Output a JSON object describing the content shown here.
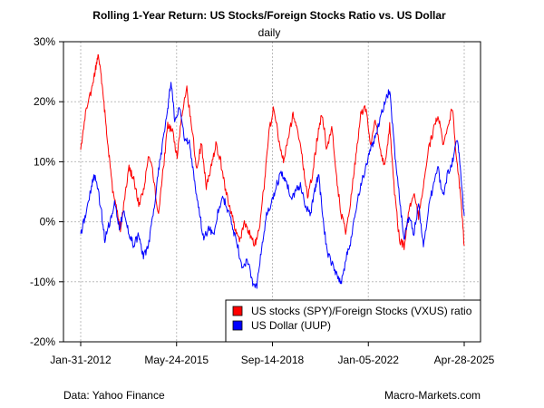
{
  "chart_data": {
    "type": "line",
    "title": "Rolling 1-Year Return: US Stocks/Foreign Stocks Ratio vs. US Dollar",
    "subtitle": "daily",
    "xlabel": "",
    "ylabel": "",
    "y_unit": "%",
    "ylim": [
      -20,
      30
    ],
    "y_ticks": [
      -20,
      -10,
      0,
      10,
      20,
      30
    ],
    "y_tick_labels": [
      "-20%",
      "-10%",
      "0%",
      "10%",
      "20%",
      "30%"
    ],
    "xlim": [
      "2012-01-31",
      "2025-04-28"
    ],
    "x_ticks": [
      "2012-01-31",
      "2015-05-24",
      "2018-09-14",
      "2022-01-05",
      "2025-04-28"
    ],
    "x_tick_labels": [
      "Jan-31-2012",
      "May-24-2015",
      "Sep-14-2018",
      "Jan-05-2022",
      "Apr-28-2025"
    ],
    "grid": true,
    "legend": "bottom-right",
    "series": [
      {
        "name": "US stocks (SPY)/Foreign Stocks (VXUS) ratio",
        "color": "#ff0000",
        "points": [
          [
            "2012-01-31",
            12
          ],
          [
            "2012-04-01",
            18
          ],
          [
            "2012-06-15",
            22
          ],
          [
            "2012-08-01",
            25
          ],
          [
            "2012-09-10",
            28
          ],
          [
            "2012-10-15",
            24
          ],
          [
            "2012-12-01",
            18
          ],
          [
            "2013-01-15",
            12
          ],
          [
            "2013-03-01",
            6
          ],
          [
            "2013-05-01",
            2
          ],
          [
            "2013-06-15",
            -1
          ],
          [
            "2013-08-01",
            3
          ],
          [
            "2013-10-01",
            9
          ],
          [
            "2013-12-01",
            7
          ],
          [
            "2014-02-01",
            3
          ],
          [
            "2014-04-01",
            5
          ],
          [
            "2014-06-01",
            11
          ],
          [
            "2014-08-01",
            8
          ],
          [
            "2014-10-01",
            1
          ],
          [
            "2014-12-01",
            8
          ],
          [
            "2015-02-01",
            16
          ],
          [
            "2015-04-01",
            15
          ],
          [
            "2015-06-01",
            11
          ],
          [
            "2015-08-01",
            18
          ],
          [
            "2015-10-01",
            22
          ],
          [
            "2015-12-01",
            16
          ],
          [
            "2016-02-01",
            9
          ],
          [
            "2016-04-01",
            13
          ],
          [
            "2016-06-01",
            6
          ],
          [
            "2016-08-01",
            9
          ],
          [
            "2016-10-01",
            13
          ],
          [
            "2016-12-01",
            10
          ],
          [
            "2017-02-01",
            5
          ],
          [
            "2017-04-01",
            2
          ],
          [
            "2017-06-01",
            -1
          ],
          [
            "2017-08-01",
            -3
          ],
          [
            "2017-10-01",
            0
          ],
          [
            "2017-12-01",
            -2
          ],
          [
            "2018-02-01",
            -4
          ],
          [
            "2018-04-01",
            -1
          ],
          [
            "2018-06-01",
            6
          ],
          [
            "2018-08-01",
            15
          ],
          [
            "2018-10-01",
            19
          ],
          [
            "2018-12-01",
            14
          ],
          [
            "2019-02-01",
            10
          ],
          [
            "2019-04-01",
            14
          ],
          [
            "2019-06-01",
            18
          ],
          [
            "2019-08-01",
            15
          ],
          [
            "2019-10-01",
            10
          ],
          [
            "2019-12-01",
            4
          ],
          [
            "2020-02-01",
            8
          ],
          [
            "2020-04-01",
            14
          ],
          [
            "2020-06-01",
            18
          ],
          [
            "2020-08-01",
            12
          ],
          [
            "2020-10-01",
            16
          ],
          [
            "2020-12-01",
            7
          ],
          [
            "2021-02-01",
            1
          ],
          [
            "2021-04-01",
            -2
          ],
          [
            "2021-06-01",
            4
          ],
          [
            "2021-08-01",
            11
          ],
          [
            "2021-10-01",
            18
          ],
          [
            "2021-12-01",
            19
          ],
          [
            "2022-02-01",
            13
          ],
          [
            "2022-04-01",
            17
          ],
          [
            "2022-06-01",
            12
          ],
          [
            "2022-08-01",
            9
          ],
          [
            "2022-10-01",
            16
          ],
          [
            "2022-12-01",
            5
          ],
          [
            "2023-02-01",
            -3
          ],
          [
            "2023-04-01",
            -4
          ],
          [
            "2023-06-01",
            2
          ],
          [
            "2023-08-01",
            5
          ],
          [
            "2023-10-01",
            1
          ],
          [
            "2023-12-01",
            6
          ],
          [
            "2024-02-01",
            12
          ],
          [
            "2024-04-01",
            15
          ],
          [
            "2024-06-01",
            18
          ],
          [
            "2024-08-01",
            13
          ],
          [
            "2024-10-01",
            16
          ],
          [
            "2024-12-01",
            19
          ],
          [
            "2025-02-01",
            9
          ],
          [
            "2025-03-15",
            4
          ],
          [
            "2025-04-28",
            -4
          ]
        ]
      },
      {
        "name": "US Dollar (UUP)",
        "color": "#0000ff",
        "points": [
          [
            "2012-01-31",
            -2
          ],
          [
            "2012-04-01",
            1
          ],
          [
            "2012-06-15",
            6
          ],
          [
            "2012-08-01",
            8
          ],
          [
            "2012-10-15",
            2
          ],
          [
            "2012-12-01",
            -3
          ],
          [
            "2013-02-01",
            0
          ],
          [
            "2013-04-01",
            3
          ],
          [
            "2013-06-01",
            -1
          ],
          [
            "2013-08-01",
            2
          ],
          [
            "2013-10-01",
            -2
          ],
          [
            "2013-12-01",
            -4
          ],
          [
            "2014-02-01",
            -2
          ],
          [
            "2014-04-01",
            -6
          ],
          [
            "2014-06-01",
            -4
          ],
          [
            "2014-08-01",
            1
          ],
          [
            "2014-10-01",
            8
          ],
          [
            "2014-12-01",
            13
          ],
          [
            "2015-02-01",
            19
          ],
          [
            "2015-03-15",
            23
          ],
          [
            "2015-05-01",
            17
          ],
          [
            "2015-07-01",
            19
          ],
          [
            "2015-09-01",
            14
          ],
          [
            "2015-11-01",
            13
          ],
          [
            "2016-01-01",
            7
          ],
          [
            "2016-03-01",
            2
          ],
          [
            "2016-05-01",
            -3
          ],
          [
            "2016-07-01",
            -1
          ],
          [
            "2016-09-01",
            -2
          ],
          [
            "2016-11-01",
            2
          ],
          [
            "2017-01-01",
            4
          ],
          [
            "2017-03-01",
            2
          ],
          [
            "2017-05-01",
            -1
          ],
          [
            "2017-07-01",
            -4
          ],
          [
            "2017-09-01",
            -8
          ],
          [
            "2017-11-01",
            -6
          ],
          [
            "2018-01-01",
            -10
          ],
          [
            "2018-03-01",
            -11
          ],
          [
            "2018-05-01",
            -4
          ],
          [
            "2018-07-01",
            1
          ],
          [
            "2018-09-01",
            3
          ],
          [
            "2018-11-01",
            6
          ],
          [
            "2019-01-01",
            8
          ],
          [
            "2019-03-01",
            7
          ],
          [
            "2019-05-01",
            4
          ],
          [
            "2019-07-01",
            5
          ],
          [
            "2019-09-01",
            6
          ],
          [
            "2019-11-01",
            3
          ],
          [
            "2020-01-01",
            1
          ],
          [
            "2020-03-01",
            5
          ],
          [
            "2020-04-15",
            8
          ],
          [
            "2020-06-01",
            2
          ],
          [
            "2020-08-01",
            -5
          ],
          [
            "2020-10-01",
            -7
          ],
          [
            "2020-12-01",
            -9
          ],
          [
            "2021-02-01",
            -10
          ],
          [
            "2021-04-01",
            -6
          ],
          [
            "2021-06-01",
            -3
          ],
          [
            "2021-08-01",
            2
          ],
          [
            "2021-10-01",
            6
          ],
          [
            "2021-12-01",
            9
          ],
          [
            "2022-02-01",
            12
          ],
          [
            "2022-04-01",
            14
          ],
          [
            "2022-06-01",
            17
          ],
          [
            "2022-08-01",
            20
          ],
          [
            "2022-10-01",
            22
          ],
          [
            "2022-12-01",
            12
          ],
          [
            "2023-02-01",
            4
          ],
          [
            "2023-04-01",
            -3
          ],
          [
            "2023-06-01",
            1
          ],
          [
            "2023-08-01",
            -2
          ],
          [
            "2023-10-01",
            3
          ],
          [
            "2023-12-01",
            -4
          ],
          [
            "2024-02-01",
            2
          ],
          [
            "2024-04-01",
            6
          ],
          [
            "2024-06-01",
            9
          ],
          [
            "2024-08-01",
            4
          ],
          [
            "2024-10-01",
            8
          ],
          [
            "2024-12-01",
            10
          ],
          [
            "2025-02-01",
            14
          ],
          [
            "2025-03-15",
            8
          ],
          [
            "2025-04-28",
            1
          ]
        ]
      }
    ]
  },
  "footer": {
    "source": "Data: Yahoo Finance",
    "brand": "Macro-Markets.com"
  }
}
